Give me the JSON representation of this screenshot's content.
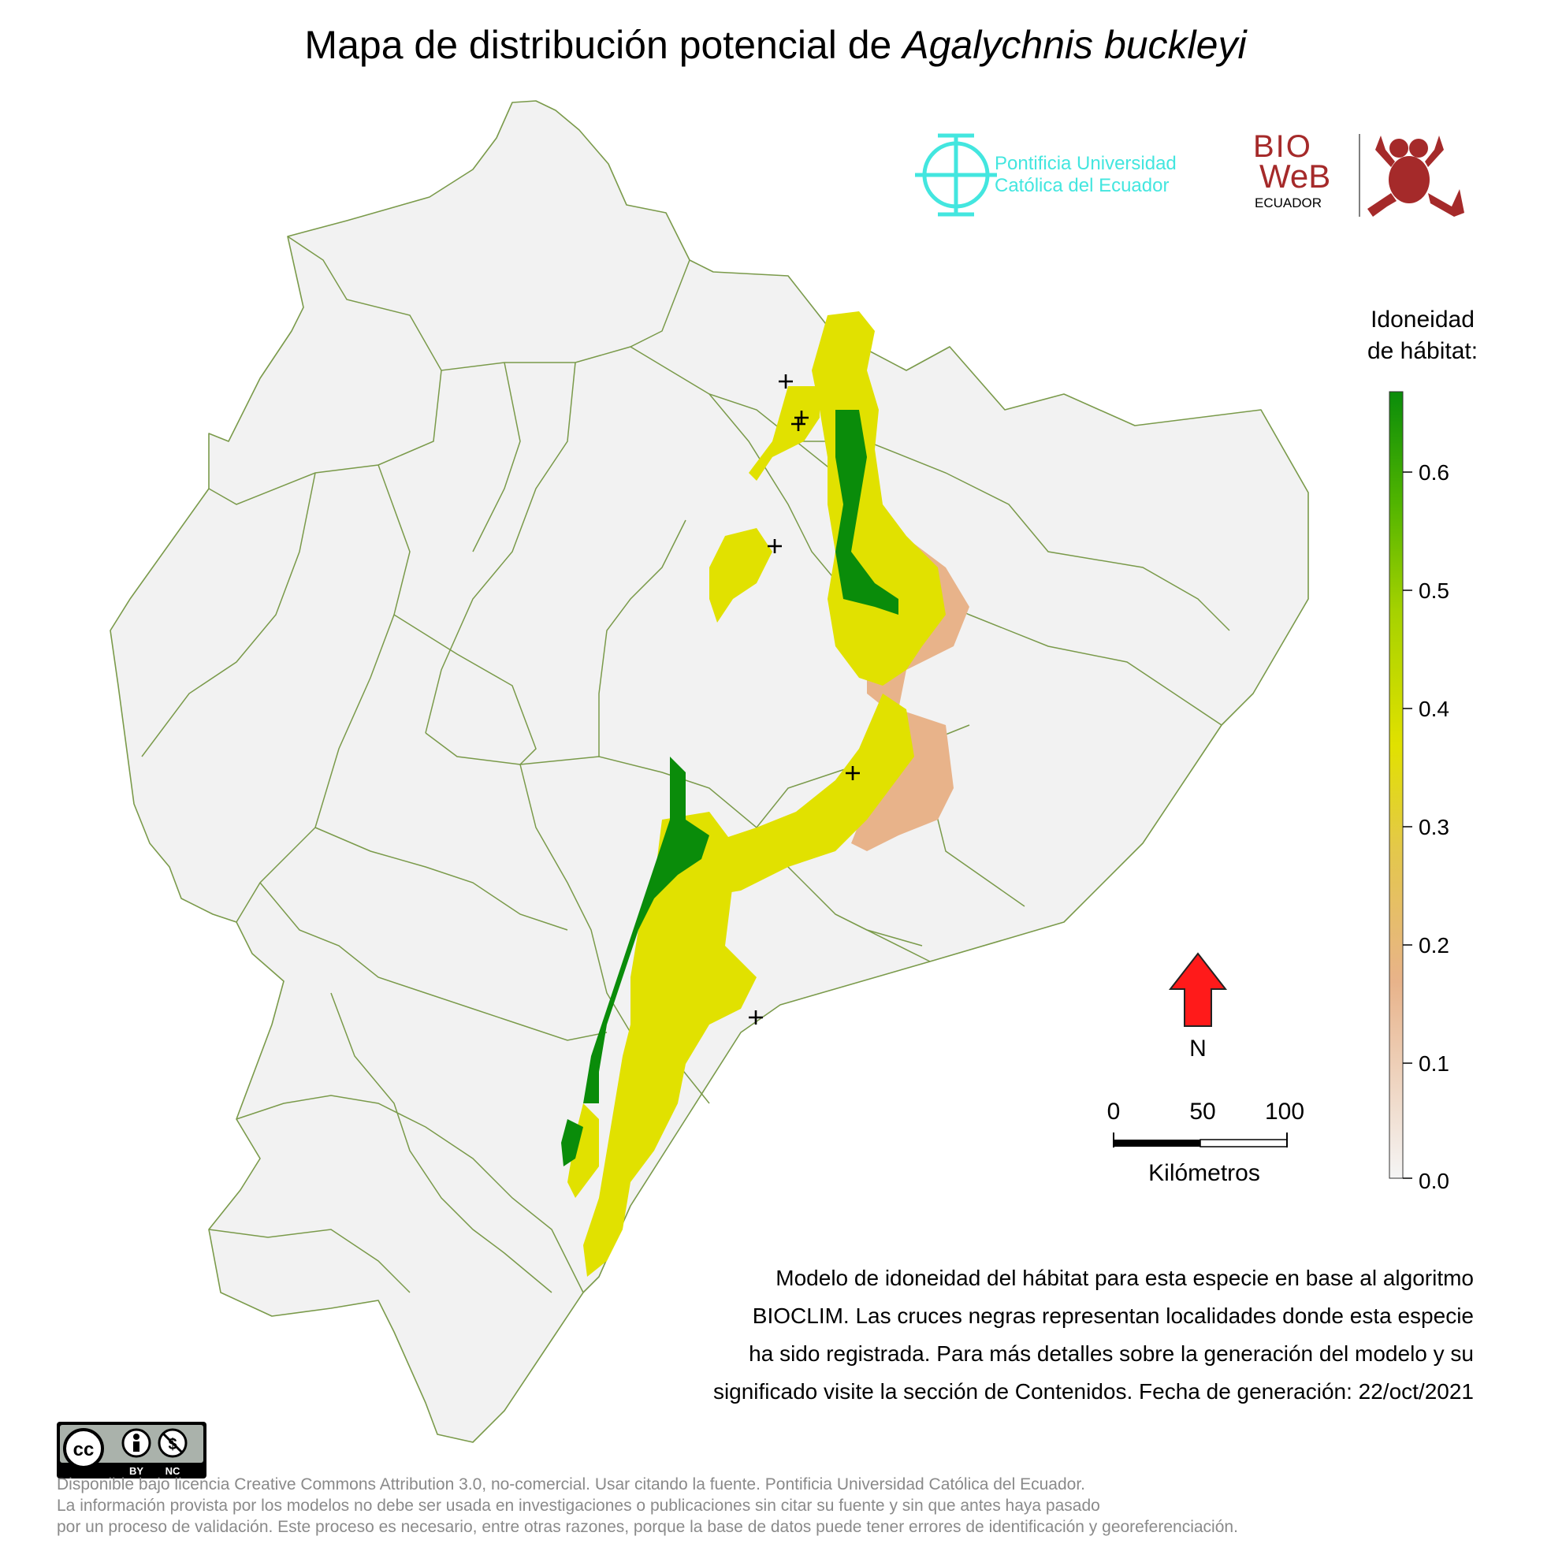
{
  "title": {
    "prefix": "Mapa de distribución potencial de ",
    "species": "Agalychnis buckleyi"
  },
  "logos": {
    "puce_line1": "Pontificia Universidad",
    "puce_line2": "Católica del Ecuador",
    "bioweb_1": "BIO",
    "bioweb_2": "WeB",
    "bioweb_3": "ECUADOR"
  },
  "legend": {
    "title_line1": "Idoneidad",
    "title_line2": "de hábitat:",
    "ticks": [
      "0.6",
      "0.5",
      "0.4",
      "0.3",
      "0.2",
      "0.1",
      "0.0"
    ],
    "colors": [
      "#f5f5f5",
      "#e8b38a",
      "#e4c84a",
      "#e1e100",
      "#a6d200",
      "#50b400",
      "#0a8c0a"
    ]
  },
  "north_label": "N",
  "scale": {
    "labels": [
      "0",
      "50",
      "100"
    ],
    "unit": "Kilómetros"
  },
  "caption": [
    "Modelo de idoneidad del hábitat para esta especie en base al algoritmo",
    "BIOCLIM. Las cruces negras representan localidades donde esta especie",
    "ha sido registrada. Para más detalles sobre la generación del modelo y su",
    "significado visite la sección de Contenidos. Fecha de generación: 22/oct/2021"
  ],
  "license_badge": {
    "by": "BY",
    "nc": "NC"
  },
  "footer": [
    "Disponible bajo licencia Creative Commons Attribution 3.0, no-comercial. Usar citando la fuente. Pontificia Universidad Católica del Ecuador.",
    "La información provista por los modelos no debe ser usada en investigaciones o publicaciones sin citar su fuente y sin que antes haya pasado",
    "por un proceso de validación. Este proceso es necesario, entre otras razones, porque la base de datos puede tener errores de identificación y georeferenciación."
  ],
  "map_colors": {
    "land": "#f2f2f2",
    "border": "#7a9a4a",
    "high": "#0a8c0a",
    "mid": "#e1e100",
    "low": "#e8b38a"
  }
}
